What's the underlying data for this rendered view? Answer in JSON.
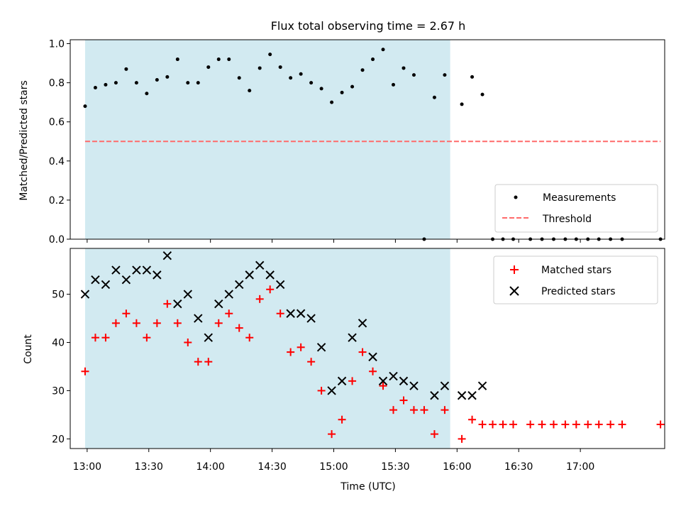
{
  "colors": {
    "shade": "#add8e6",
    "threshold": "#ff6b6b",
    "measurement": "#000000",
    "matched": "#ff0000",
    "predicted": "#000000"
  },
  "chart_data": [
    {
      "type": "scatter",
      "title": "Flux total observing time = 2.67 h",
      "xlabel": "",
      "ylabel": "Matched/Predicted stars",
      "xlim_minutes_utc": [
        -24.7,
        843.1
      ],
      "ylim": [
        0.0,
        1.02
      ],
      "yticks": [
        0.0,
        0.2,
        0.4,
        0.6,
        0.8,
        1.0
      ],
      "ytick_labels": [
        "0.0",
        "0.2",
        "0.4",
        "0.6",
        "0.8",
        "1.0"
      ],
      "shaded_interval_minutes": [
        -3,
        530
      ],
      "threshold": {
        "name": "Threshold",
        "y": 0.5,
        "x_range_minutes": [
          -3,
          837
        ]
      },
      "legend": {
        "position": "lower-right",
        "entries": [
          "Measurements",
          "Threshold"
        ]
      },
      "series": [
        {
          "name": "Measurements",
          "x_minutes": [
            -3,
            12,
            27,
            42,
            57,
            72,
            87,
            102,
            117,
            132,
            147,
            162,
            177,
            192,
            207,
            222,
            237,
            252,
            267,
            282,
            297,
            312,
            327,
            342,
            357,
            372,
            387,
            402,
            417,
            432,
            447,
            462,
            477,
            492,
            507,
            522,
            547,
            562,
            577,
            592,
            607,
            622,
            647,
            664,
            681,
            698,
            714,
            731,
            747,
            764,
            781,
            837
          ],
          "y": [
            0.68,
            0.775,
            0.79,
            0.8,
            0.87,
            0.8,
            0.745,
            0.815,
            0.83,
            0.92,
            0.8,
            0.8,
            0.88,
            0.92,
            0.92,
            0.825,
            0.76,
            0.875,
            0.945,
            0.88,
            0.825,
            0.845,
            0.8,
            0.77,
            0.7,
            0.75,
            0.78,
            0.865,
            0.92,
            0.97,
            0.79,
            0.875,
            0.84,
            0.0,
            0.725,
            0.84,
            0.69,
            0.83,
            0.74,
            0.0,
            0.0,
            0.0,
            0.0,
            0.0,
            0.0,
            0.0,
            0.0,
            0.0,
            0.0,
            0.0,
            0.0,
            0.0
          ]
        }
      ]
    },
    {
      "type": "scatter",
      "title": "",
      "xlabel": "Time (UTC)",
      "ylabel": "Count",
      "xlim_minutes_utc": [
        -24.7,
        843.1
      ],
      "ylim": [
        18.0,
        59.5
      ],
      "yticks": [
        20,
        30,
        40,
        50
      ],
      "ytick_labels": [
        "20",
        "30",
        "40",
        "50"
      ],
      "xticks_minutes": [
        0,
        90,
        180,
        270,
        360,
        450,
        540,
        630,
        720
      ],
      "xtick_labels": [
        "13:00",
        "13:30",
        "14:00",
        "14:30",
        "15:00",
        "15:30",
        "16:00",
        "16:30",
        "17:00"
      ],
      "shaded_interval_minutes": [
        -3,
        530
      ],
      "legend": {
        "position": "upper-right",
        "entries": [
          "Matched stars",
          "Predicted stars"
        ]
      },
      "series": [
        {
          "name": "Matched stars",
          "x_minutes": [
            -3,
            12,
            27,
            42,
            57,
            72,
            87,
            102,
            117,
            132,
            147,
            162,
            177,
            192,
            207,
            222,
            237,
            252,
            267,
            282,
            297,
            312,
            327,
            342,
            357,
            372,
            387,
            402,
            417,
            432,
            447,
            462,
            477,
            492,
            507,
            522,
            547,
            562,
            577,
            592,
            607,
            622,
            647,
            664,
            681,
            698,
            714,
            731,
            747,
            764,
            781,
            837
          ],
          "y": [
            34,
            41,
            41,
            44,
            46,
            44,
            41,
            44,
            48,
            44,
            40,
            36,
            36,
            44,
            46,
            43,
            41,
            49,
            51,
            46,
            38,
            39,
            36,
            30,
            21,
            24,
            32,
            38,
            34,
            31,
            26,
            28,
            26,
            26,
            21,
            26,
            20,
            24,
            23,
            23,
            23,
            23,
            23,
            23,
            23,
            23,
            23,
            23,
            23,
            23,
            23,
            23
          ]
        },
        {
          "name": "Predicted stars",
          "x_minutes": [
            -3,
            12,
            27,
            42,
            57,
            72,
            87,
            102,
            117,
            132,
            147,
            162,
            177,
            192,
            207,
            222,
            237,
            252,
            267,
            282,
            297,
            312,
            327,
            342,
            357,
            372,
            387,
            402,
            417,
            432,
            447,
            462,
            477,
            507,
            522,
            547,
            562,
            577
          ],
          "y": [
            50,
            53,
            52,
            55,
            53,
            55,
            55,
            54,
            58,
            48,
            50,
            45,
            41,
            48,
            50,
            52,
            54,
            56,
            54,
            52,
            46,
            46,
            45,
            39,
            30,
            32,
            41,
            44,
            37,
            32,
            33,
            32,
            31,
            29,
            31,
            29,
            29,
            31
          ]
        }
      ]
    }
  ]
}
